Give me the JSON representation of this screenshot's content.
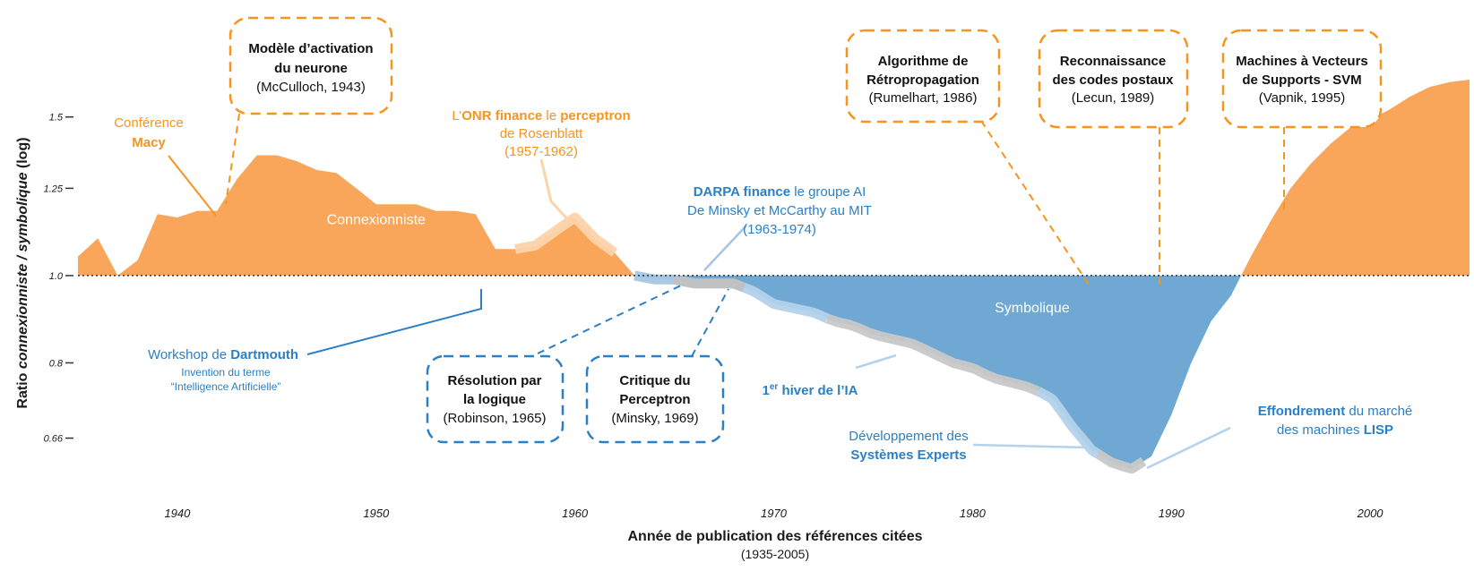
{
  "chart_data": {
    "type": "area",
    "xlabel": "Année de publication des références citées",
    "xlabel_sub": "(1935-2005)",
    "ylabel_parts": [
      "Ratio ",
      "connexionniste / symbolique",
      " (log)"
    ],
    "y_scale": "log",
    "baseline": 1.0,
    "xlim": [
      1935,
      2005
    ],
    "ylim": [
      0.58,
      1.7
    ],
    "x_ticks": [
      1940,
      1950,
      1960,
      1970,
      1980,
      1990,
      2000
    ],
    "y_ticks": [
      {
        "value": 1.5,
        "label": "1.5"
      },
      {
        "value": 1.25,
        "label": "1.25"
      },
      {
        "value": 1.0,
        "label": "1.0"
      },
      {
        "value": 0.8,
        "label": "0.8"
      },
      {
        "value": 0.66,
        "label": "0.66"
      }
    ],
    "grid": false,
    "colors": {
      "connexionniste": "#f9a65a",
      "symbolique": "#6fa8d2",
      "orange_text": "#f7941d",
      "blue_text": "#2b80c5"
    },
    "series": [
      {
        "x": [
          1935,
          1936,
          1937,
          1938,
          1939,
          1940,
          1941,
          1942,
          1943,
          1944,
          1945,
          1946,
          1947,
          1948,
          1949,
          1950,
          1951,
          1952,
          1953,
          1954,
          1955,
          1956,
          1957,
          1958,
          1959,
          1960,
          1961,
          1962,
          1963,
          1964,
          1965,
          1966,
          1967,
          1968,
          1969,
          1970,
          1971,
          1972,
          1973,
          1974,
          1975,
          1976,
          1977,
          1978,
          1979,
          1980,
          1981,
          1982,
          1983,
          1984,
          1985,
          1986,
          1987,
          1988,
          1989,
          1990,
          1991,
          1992,
          1993,
          1994,
          1995,
          1996,
          1997,
          1998,
          1999,
          2000,
          2001,
          2002,
          2003,
          2004,
          2005
        ],
        "y": [
          1.05,
          1.1,
          1.0,
          1.04,
          1.17,
          1.16,
          1.18,
          1.18,
          1.28,
          1.36,
          1.36,
          1.34,
          1.31,
          1.3,
          1.25,
          1.2,
          1.2,
          1.2,
          1.18,
          1.18,
          1.17,
          1.07,
          1.07,
          1.08,
          1.12,
          1.16,
          1.1,
          1.06,
          1.0,
          0.99,
          0.99,
          0.98,
          0.98,
          0.98,
          0.96,
          0.93,
          0.92,
          0.91,
          0.89,
          0.88,
          0.86,
          0.85,
          0.84,
          0.82,
          0.8,
          0.79,
          0.77,
          0.76,
          0.75,
          0.73,
          0.68,
          0.64,
          0.62,
          0.61,
          0.63,
          0.7,
          0.8,
          0.89,
          0.95,
          1.05,
          1.15,
          1.25,
          1.33,
          1.4,
          1.46,
          1.49,
          1.53,
          1.58,
          1.62,
          1.64,
          1.65
        ]
      }
    ],
    "shaded_labels": [
      {
        "text": "Connexionniste",
        "x": 1950,
        "y": 1.14
      },
      {
        "text": "Symbolique",
        "x": 1983,
        "y": 0.91
      }
    ],
    "highlights": [
      {
        "x0": 1957,
        "x1": 1962,
        "color": "#fcd3ab"
      },
      {
        "x0": 1963,
        "x1": 1968.5,
        "color": "#a5c6e3"
      },
      {
        "x0": 1965,
        "x1": 1968.5,
        "color": "#c1c1c1"
      },
      {
        "x0": 1968.5,
        "x1": 1972.7,
        "color": "#b3d2eb"
      },
      {
        "x0": 1972.7,
        "x1": 1983.3,
        "color": "#c8c8c8"
      },
      {
        "x0": 1983.3,
        "x1": 1986.3,
        "color": "#b3d2eb"
      },
      {
        "x0": 1986.3,
        "x1": 1988.6,
        "color": "#c8c8c8"
      }
    ],
    "annotations": {
      "macy": [
        "Conférence",
        "Macy"
      ],
      "onr": {
        "l1_a": "L’",
        "l1_b": "ONR finance",
        "l1_c": " le ",
        "l1_d": "perceptron",
        "l2": "de Rosenblatt",
        "l3": "(1957-1962)"
      },
      "darpa": {
        "l1_a": "DARPA finance",
        "l1_b": " le groupe AI",
        "l2": "De Minsky et McCarthy au MIT",
        "l3": "(1963-1974)"
      },
      "dartmouth": {
        "l1_a": "Workshop de ",
        "l1_b": "Dartmouth",
        "l2": "Invention du terme",
        "l3": "“Intelligence Artificielle”"
      },
      "hiver": {
        "pre": "1",
        "sup": "er",
        "post": " hiver de l’IA"
      },
      "experts": {
        "l1": "Développement des",
        "l2": "Systèmes Experts"
      },
      "lisp": {
        "l1_a": "Effondrement",
        "l1_b": " du marché",
        "l2_a": "des machines ",
        "l2_b": "LISP"
      }
    },
    "boxes_orange": [
      {
        "title": [
          "Modèle d’activation",
          "du neurone"
        ],
        "ref": "(McCulloch, 1943)"
      },
      {
        "title": [
          "Algorithme de",
          "Rétropropagation"
        ],
        "ref": "(Rumelhart, 1986)"
      },
      {
        "title": [
          "Reconnaissance",
          "des codes postaux"
        ],
        "ref": "(Lecun, 1989)"
      },
      {
        "title": [
          "Machines à Vecteurs",
          "de Supports - SVM"
        ],
        "ref": "(Vapnik, 1995)"
      }
    ],
    "boxes_blue": [
      {
        "title": [
          "Résolution par",
          "la logique"
        ],
        "ref": "(Robinson, 1965)"
      },
      {
        "title": [
          "Critique du",
          "Perceptron"
        ],
        "ref": "(Minsky, 1969)"
      }
    ]
  }
}
